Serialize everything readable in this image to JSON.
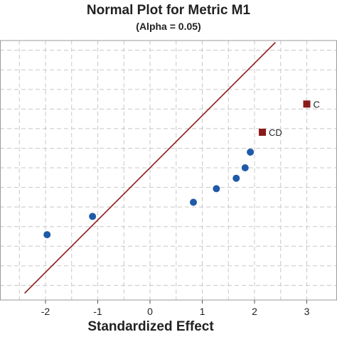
{
  "chart_data": {
    "type": "scatter",
    "title": "Normal Plot for Metric M1",
    "subtitle": "(Alpha = 0.05)",
    "xlabel": "Standardized Effect",
    "ylabel": "",
    "xlim": [
      -2.75,
      3.15
    ],
    "ylim": [
      -2.6,
      2.6
    ],
    "x_ticks": [
      -2,
      -1,
      0,
      1,
      2,
      3
    ],
    "grid": true,
    "fit_line": {
      "x": [
        -2.4,
        2.4
      ],
      "y": [
        -2.4,
        2.4
      ],
      "color": "#8b1a1a"
    },
    "series": [
      {
        "marker": "circle",
        "color": "#1f5aa8",
        "points": [
          {
            "x": -1.97,
            "y": -1.28
          },
          {
            "x": -1.1,
            "y": -0.93
          },
          {
            "x": 0.83,
            "y": -0.66
          },
          {
            "x": 1.27,
            "y": -0.4
          },
          {
            "x": 1.65,
            "y": -0.2
          },
          {
            "x": 1.82,
            "y": 0.0
          },
          {
            "x": 1.92,
            "y": 0.3
          }
        ]
      },
      {
        "marker": "square",
        "color": "#8b1a1a",
        "points": [
          {
            "x": 2.15,
            "y": 0.68,
            "label": "CD"
          },
          {
            "x": 3.0,
            "y": 1.22,
            "label": "C"
          }
        ]
      }
    ]
  }
}
